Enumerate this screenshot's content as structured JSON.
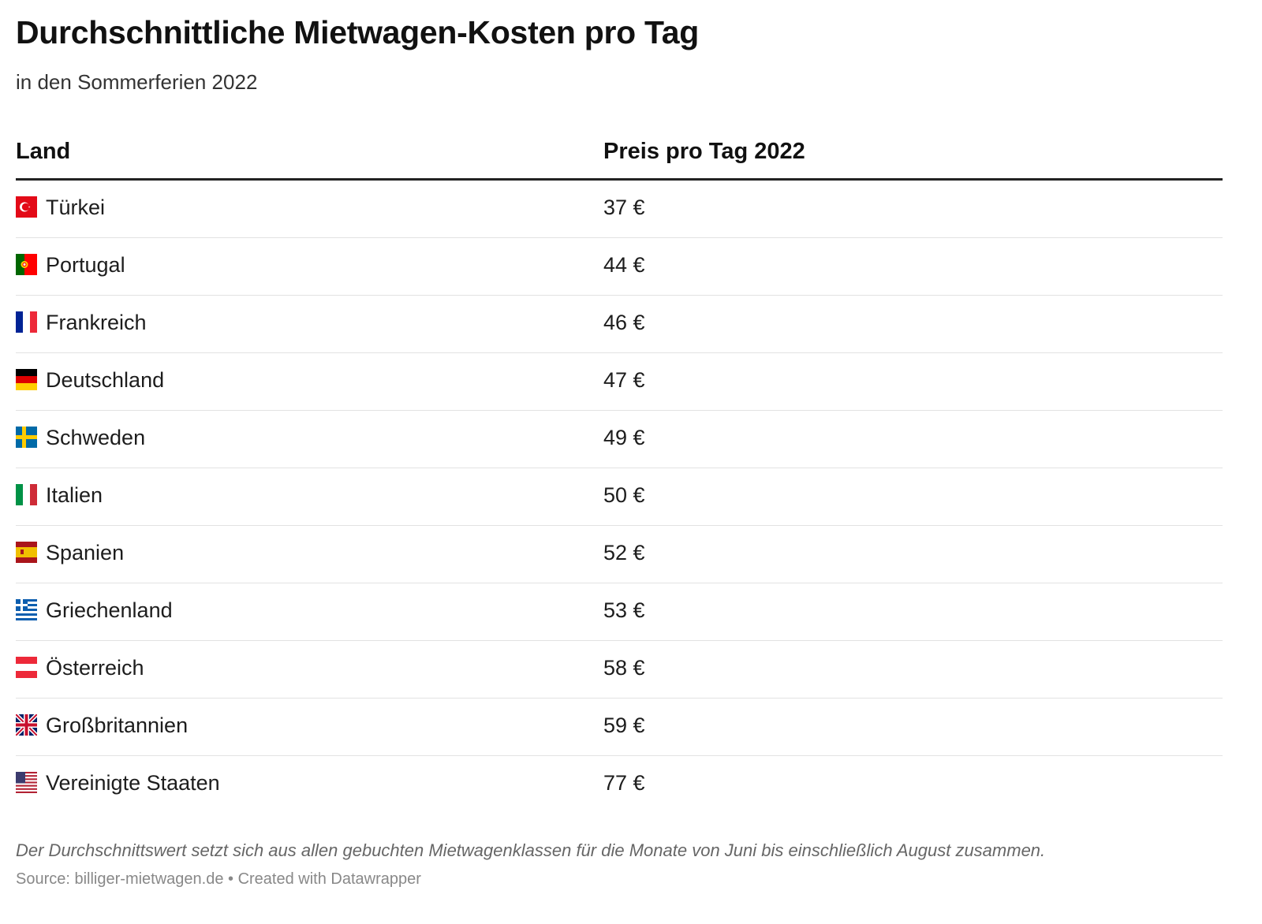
{
  "title": "Durchschnittliche Mietwagen-Kosten pro Tag",
  "subtitle": "in den Sommerferien 2022",
  "chart_data": {
    "type": "table",
    "columns": [
      "Land",
      "Preis pro Tag 2022"
    ],
    "rows": [
      {
        "flag": "turkey-flag-icon",
        "country": "Türkei",
        "price": "37 €",
        "value": 37
      },
      {
        "flag": "portugal-flag-icon",
        "country": "Portugal",
        "price": "44 €",
        "value": 44
      },
      {
        "flag": "france-flag-icon",
        "country": "Frankreich",
        "price": "46 €",
        "value": 46
      },
      {
        "flag": "germany-flag-icon",
        "country": "Deutschland",
        "price": "47 €",
        "value": 47
      },
      {
        "flag": "sweden-flag-icon",
        "country": "Schweden",
        "price": "49 €",
        "value": 49
      },
      {
        "flag": "italy-flag-icon",
        "country": "Italien",
        "price": "50 €",
        "value": 50
      },
      {
        "flag": "spain-flag-icon",
        "country": "Spanien",
        "price": "52 €",
        "value": 52
      },
      {
        "flag": "greece-flag-icon",
        "country": "Griechenland",
        "price": "53 €",
        "value": 53
      },
      {
        "flag": "austria-flag-icon",
        "country": "Österreich",
        "price": "58 €",
        "value": 58
      },
      {
        "flag": "uk-flag-icon",
        "country": "Großbritannien",
        "price": "59 €",
        "value": 59
      },
      {
        "flag": "usa-flag-icon",
        "country": "Vereinigte Staaten",
        "price": "77 €",
        "value": 77
      }
    ]
  },
  "notes": "Der Durchschnittswert setzt sich aus allen gebuchten Mietwagenklassen für die Monate von Juni bis einschließlich August zusammen.",
  "source": "Source: billiger-mietwagen.de • Created with Datawrapper"
}
